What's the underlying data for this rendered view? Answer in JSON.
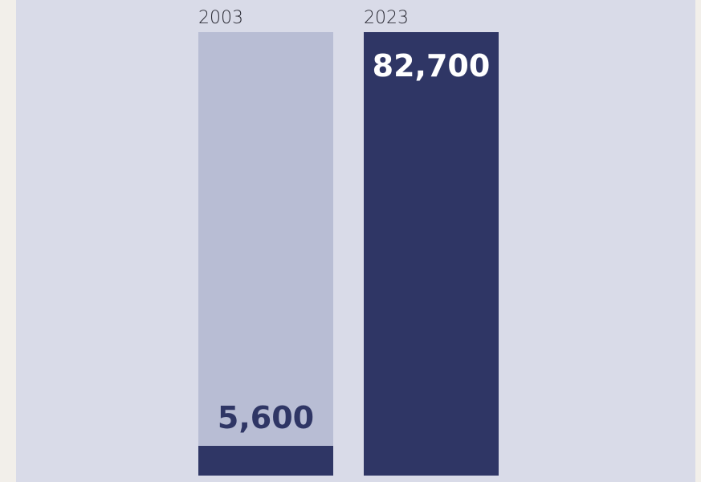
{
  "colors": {
    "panel_background": "#d9dbe8",
    "page_background": "#f2efea",
    "track": "#b8bdd4",
    "bar": "#2f3665",
    "label_on_track": "#2f3665",
    "label_on_bar": "#ffffff",
    "year_text": "#2b2b35"
  },
  "chart_data": {
    "type": "bar",
    "categories": [
      "2003",
      "2023"
    ],
    "values": [
      5600,
      82700
    ],
    "value_labels": [
      "5,600",
      "82,700"
    ],
    "ylim": [
      0,
      82700
    ],
    "grid": false,
    "legend": "none",
    "title": "",
    "xlabel": "",
    "ylabel": ""
  }
}
